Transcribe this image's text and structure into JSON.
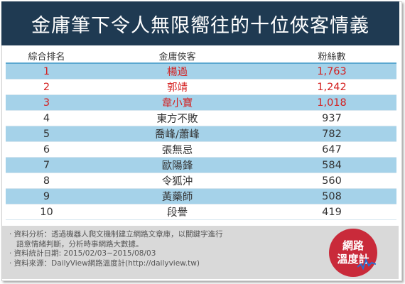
{
  "title": "金庸筆下令人無限嚮往的十位俠客情義",
  "table": {
    "headers": [
      "綜合排名",
      "金庸俠客",
      "粉絲數"
    ],
    "rows": [
      {
        "rank": "1",
        "name": "楊過",
        "fans": "1,763"
      },
      {
        "rank": "2",
        "name": "郭靖",
        "fans": "1,242"
      },
      {
        "rank": "3",
        "name": "韋小寶",
        "fans": "1,018"
      },
      {
        "rank": "4",
        "name": "東方不敗",
        "fans": "937"
      },
      {
        "rank": "5",
        "name": "喬峰/蕭峰",
        "fans": "782"
      },
      {
        "rank": "6",
        "name": "張無忌",
        "fans": "647"
      },
      {
        "rank": "7",
        "name": "歐陽鋒",
        "fans": "584"
      },
      {
        "rank": "8",
        "name": "令狐沖",
        "fans": "560"
      },
      {
        "rank": "9",
        "name": "黃藥師",
        "fans": "508"
      },
      {
        "rank": "10",
        "name": "段譽",
        "fans": "419"
      }
    ]
  },
  "notes": {
    "line1": "‧ 資料分析：透過機器人爬文機制建立網路文章庫，以關鍵字進行",
    "line2": "語意情緒判斷，分析時事網路大數據。",
    "line3": "‧ 資料統計日期: 2015/02/03~2015/08/03",
    "line4": "‧ 資料來源：DailyView網路溫度計(http://dailyview.tw)"
  },
  "logo": {
    "line1": "網路",
    "line2": "溫度計"
  },
  "colors": {
    "header_bg": "#1f3a52",
    "row_alt": "#a5d2e9",
    "highlight": "#d42020",
    "logo": "#c92a3a"
  }
}
